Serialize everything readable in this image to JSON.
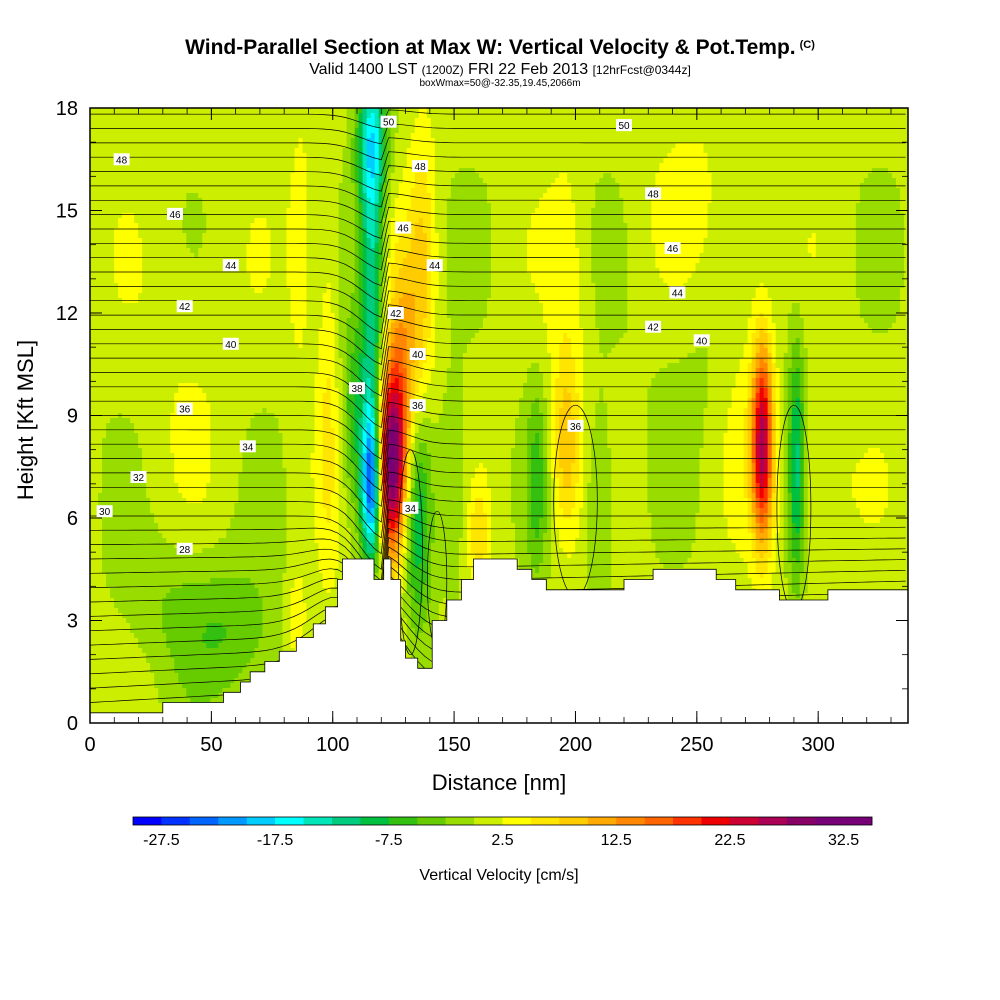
{
  "chart_data": {
    "type": "heatmap",
    "title": "Wind-Parallel Section at Max W: Vertical Velocity & Pot.Temp.",
    "copyright_mark": "(C)",
    "subtitle_main": "Valid 1400 LST ",
    "subtitle_small1": "(1200Z)",
    "subtitle_date": " FRI 22 Feb 2013 ",
    "subtitle_small2": "[12hrFcst@0344z]",
    "subtitle2": "boxWmax=50@-32.35,19.45,2066m",
    "xlabel": "Distance [nm]",
    "ylabel": "Height [Kft MSL]",
    "xlim": [
      0,
      337
    ],
    "ylim": [
      0,
      18
    ],
    "xticks": [
      "0",
      "50",
      "100",
      "150",
      "200",
      "250",
      "300"
    ],
    "xtick_values": [
      0,
      50,
      100,
      150,
      200,
      250,
      300
    ],
    "yticks": [
      "0",
      "3",
      "6",
      "9",
      "12",
      "15",
      "18"
    ],
    "ytick_values": [
      0,
      3,
      6,
      9,
      12,
      15,
      18
    ],
    "colorbar": {
      "label": "Vertical Velocity [cm/s]",
      "ticks": [
        "-27.5",
        "-17.5",
        "-7.5",
        "2.5",
        "12.5",
        "22.5",
        "32.5"
      ],
      "min": -30,
      "max": 35,
      "step": 2.5,
      "colors": [
        "#0000ff",
        "#0033ff",
        "#0066ff",
        "#0099ff",
        "#00ccff",
        "#00ffff",
        "#00e6b8",
        "#00cc80",
        "#00c040",
        "#33c010",
        "#66cc00",
        "#99dd00",
        "#ccee00",
        "#ffff00",
        "#ffe600",
        "#ffcc00",
        "#ffaa00",
        "#ff8800",
        "#ff6600",
        "#ff3300",
        "#ee0000",
        "#cc0033",
        "#aa0055",
        "#880066",
        "#770077",
        "#770077"
      ]
    },
    "terrain": [
      [
        0,
        0.3
      ],
      [
        30,
        0.3
      ],
      [
        30,
        0.6
      ],
      [
        55,
        0.6
      ],
      [
        55,
        0.9
      ],
      [
        62,
        0.9
      ],
      [
        62,
        1.2
      ],
      [
        66,
        1.2
      ],
      [
        66,
        1.5
      ],
      [
        72,
        1.5
      ],
      [
        72,
        1.8
      ],
      [
        78,
        1.8
      ],
      [
        78,
        2.1
      ],
      [
        85,
        2.1
      ],
      [
        85,
        2.5
      ],
      [
        92,
        2.5
      ],
      [
        92,
        2.9
      ],
      [
        97,
        2.9
      ],
      [
        97,
        3.4
      ],
      [
        102,
        3.4
      ],
      [
        102,
        4.2
      ],
      [
        104,
        4.2
      ],
      [
        104,
        4.8
      ],
      [
        117,
        4.8
      ],
      [
        117,
        4.2
      ],
      [
        121,
        4.2
      ],
      [
        121,
        4.8
      ],
      [
        124,
        4.8
      ],
      [
        124,
        4.2
      ],
      [
        128,
        4.2
      ],
      [
        128,
        2.4
      ],
      [
        130,
        2.4
      ],
      [
        130,
        1.9
      ],
      [
        135,
        1.9
      ],
      [
        135,
        1.6
      ],
      [
        141,
        1.6
      ],
      [
        141,
        3.0
      ],
      [
        147,
        3.0
      ],
      [
        147,
        3.6
      ],
      [
        153,
        3.6
      ],
      [
        153,
        4.2
      ],
      [
        158,
        4.2
      ],
      [
        158,
        4.8
      ],
      [
        176,
        4.8
      ],
      [
        176,
        4.5
      ],
      [
        182,
        4.5
      ],
      [
        182,
        4.2
      ],
      [
        188,
        4.2
      ],
      [
        188,
        3.9
      ],
      [
        220,
        3.9
      ],
      [
        220,
        4.2
      ],
      [
        232,
        4.2
      ],
      [
        232,
        4.5
      ],
      [
        258,
        4.5
      ],
      [
        258,
        4.2
      ],
      [
        266,
        4.2
      ],
      [
        266,
        3.9
      ],
      [
        284,
        3.9
      ],
      [
        284,
        3.6
      ],
      [
        304,
        3.6
      ],
      [
        304,
        3.9
      ],
      [
        337,
        3.9
      ]
    ],
    "updrafts": [
      {
        "x": 124,
        "y": 7.5,
        "sx": 4.5,
        "sy": 1.9,
        "w": 32
      },
      {
        "x": 129,
        "y": 10.5,
        "sx": 5,
        "sy": 2.2,
        "w": 10
      },
      {
        "x": 137,
        "y": 13.5,
        "sx": 4,
        "sy": 3,
        "w": 6
      },
      {
        "x": 98,
        "y": 10,
        "sx": 3,
        "sy": 4.5,
        "w": 4
      },
      {
        "x": 87,
        "y": 14,
        "sx": 4,
        "sy": 3,
        "w": 3
      },
      {
        "x": 196,
        "y": 8,
        "sx": 4,
        "sy": 1.8,
        "w": 8
      },
      {
        "x": 197,
        "y": 12.5,
        "sx": 6,
        "sy": 3,
        "w": 3
      },
      {
        "x": 277,
        "y": 8.2,
        "sx": 3,
        "sy": 2,
        "w": 24
      },
      {
        "x": 270,
        "y": 10.5,
        "sx": 8,
        "sy": 3,
        "w": 3
      },
      {
        "x": 160,
        "y": 5.5,
        "sx": 3,
        "sy": 1,
        "w": 6
      },
      {
        "x": 85,
        "y": 3,
        "sx": 3,
        "sy": 1,
        "w": 5
      },
      {
        "x": 300,
        "y": 7,
        "sx": 10,
        "sy": 2,
        "w": 3
      },
      {
        "x": 250,
        "y": 15,
        "sx": 15,
        "sy": 3,
        "w": 2
      },
      {
        "x": 40,
        "y": 11,
        "sx": 15,
        "sy": 3,
        "w": 1.5
      }
    ],
    "downdrafts": [
      {
        "x": 116,
        "y": 7,
        "sx": 3,
        "sy": 1.6,
        "w": -25
      },
      {
        "x": 116,
        "y": 12.5,
        "sx": 3.5,
        "sy": 4,
        "w": -14
      },
      {
        "x": 116,
        "y": 17,
        "sx": 4.5,
        "sy": 1.4,
        "w": -12
      },
      {
        "x": 135,
        "y": 6,
        "sx": 4,
        "sy": 2.5,
        "w": -10
      },
      {
        "x": 108,
        "y": 9,
        "sx": 3,
        "sy": 2,
        "w": -7
      },
      {
        "x": 150,
        "y": 7,
        "sx": 5,
        "sy": 2,
        "w": -4
      },
      {
        "x": 184,
        "y": 7,
        "sx": 3,
        "sy": 2,
        "w": -6
      },
      {
        "x": 210,
        "y": 6.5,
        "sx": 4,
        "sy": 2,
        "w": -5
      },
      {
        "x": 291,
        "y": 7.5,
        "sx": 2.5,
        "sy": 2.5,
        "w": -12
      },
      {
        "x": 60,
        "y": 2.5,
        "sx": 15,
        "sy": 1.5,
        "w": -5
      },
      {
        "x": 35,
        "y": 3.5,
        "sx": 15,
        "sy": 1.5,
        "w": -3
      },
      {
        "x": 255,
        "y": 11,
        "sx": 20,
        "sy": 2,
        "w": -2
      }
    ],
    "contour_labels": [
      {
        "t": "48",
        "x": 13,
        "y": 16.5
      },
      {
        "t": "46",
        "x": 35,
        "y": 14.9
      },
      {
        "t": "44",
        "x": 58,
        "y": 13.4
      },
      {
        "t": "42",
        "x": 39,
        "y": 12.2
      },
      {
        "t": "40",
        "x": 58,
        "y": 11.1
      },
      {
        "t": "36",
        "x": 39,
        "y": 9.2
      },
      {
        "t": "34",
        "x": 65,
        "y": 8.1
      },
      {
        "t": "32",
        "x": 20,
        "y": 7.2
      },
      {
        "t": "30",
        "x": 6,
        "y": 6.2
      },
      {
        "t": "28",
        "x": 39,
        "y": 5.1
      },
      {
        "t": "50",
        "x": 123,
        "y": 17.6
      },
      {
        "t": "48",
        "x": 136,
        "y": 16.3
      },
      {
        "t": "46",
        "x": 129,
        "y": 14.5
      },
      {
        "t": "44",
        "x": 142,
        "y": 13.4
      },
      {
        "t": "42",
        "x": 126,
        "y": 12.0
      },
      {
        "t": "40",
        "x": 135,
        "y": 10.8
      },
      {
        "t": "38",
        "x": 110,
        "y": 9.8
      },
      {
        "t": "36",
        "x": 135,
        "y": 9.3
      },
      {
        "t": "34",
        "x": 132,
        "y": 6.3
      },
      {
        "t": "36",
        "x": 200,
        "y": 8.7
      },
      {
        "t": "50",
        "x": 220,
        "y": 17.5
      },
      {
        "t": "48",
        "x": 232,
        "y": 15.5
      },
      {
        "t": "46",
        "x": 240,
        "y": 13.9
      },
      {
        "t": "44",
        "x": 242,
        "y": 12.6
      },
      {
        "t": "42",
        "x": 232,
        "y": 11.6
      },
      {
        "t": "40",
        "x": 252,
        "y": 11.2
      }
    ]
  }
}
